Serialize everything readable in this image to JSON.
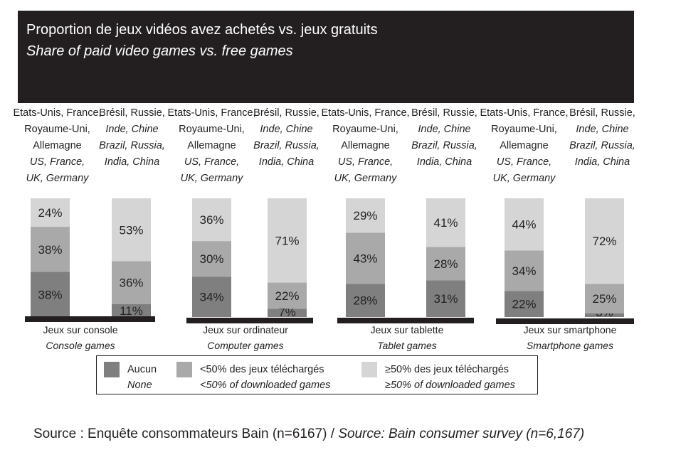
{
  "header": {
    "title": "Proportion de jeux vidéos avez achetés vs. jeux gratuits",
    "subtitle": "Share of paid video games vs. free games"
  },
  "groups": {
    "developed": {
      "line1": "Etats-Unis, France,",
      "line2": "Royaume-Uni,",
      "line3": "Allemagne",
      "line4": "US, France,",
      "line5": "UK, Germany"
    },
    "bric": {
      "line1": "Brésil, Russie,",
      "line2": "Inde, Chine",
      "line3": "Brazil, Russia,",
      "line4": "India, China"
    }
  },
  "legend": {
    "none_fr": "Aucun",
    "none_en": "None",
    "lt50_fr": "<50% des jeux téléchargés",
    "lt50_en": "<50% of downloaded games",
    "ge50_fr": "≥50% des jeux téléchargés",
    "ge50_en": "≥50% of downloaded games"
  },
  "source": {
    "fr": "Source : Enquête consommateurs Bain (n=6167) / ",
    "en": "Source: Bain consumer survey (n=6,167)"
  },
  "colors": {
    "header_bg": "#231f20",
    "none": "#7f7f7f",
    "lt50": "#a9a9a9",
    "ge50": "#d5d5d5",
    "baseline": "#231f20",
    "text": "#231f20"
  },
  "chart_data": {
    "type": "bar",
    "stacked": true,
    "categories": [
      {
        "fr": "Jeux sur console",
        "en": "Console games"
      },
      {
        "fr": "Jeux sur ordinateur",
        "en": "Computer games"
      },
      {
        "fr": "Jeux sur tablette",
        "en": "Tablet games"
      },
      {
        "fr": "Jeux sur smartphone",
        "en": "Smartphone games"
      }
    ],
    "groups": [
      "US, France, UK, Germany",
      "Brazil, Russia, India, China"
    ],
    "series": [
      {
        "name": "Aucun / None",
        "values": [
          [
            38,
            11
          ],
          [
            34,
            7
          ],
          [
            28,
            31
          ],
          [
            22,
            3
          ]
        ]
      },
      {
        "name": "<50% des jeux téléchargés / <50% of downloaded games",
        "values": [
          [
            38,
            36
          ],
          [
            30,
            22
          ],
          [
            43,
            28
          ],
          [
            34,
            25
          ]
        ]
      },
      {
        "name": "≥50% des jeux téléchargés / ≥50% of downloaded games",
        "values": [
          [
            24,
            53
          ],
          [
            36,
            71
          ],
          [
            29,
            41
          ],
          [
            44,
            72
          ]
        ]
      }
    ],
    "ylim": [
      0,
      100
    ],
    "unit": "%",
    "legend_position": "bottom"
  }
}
